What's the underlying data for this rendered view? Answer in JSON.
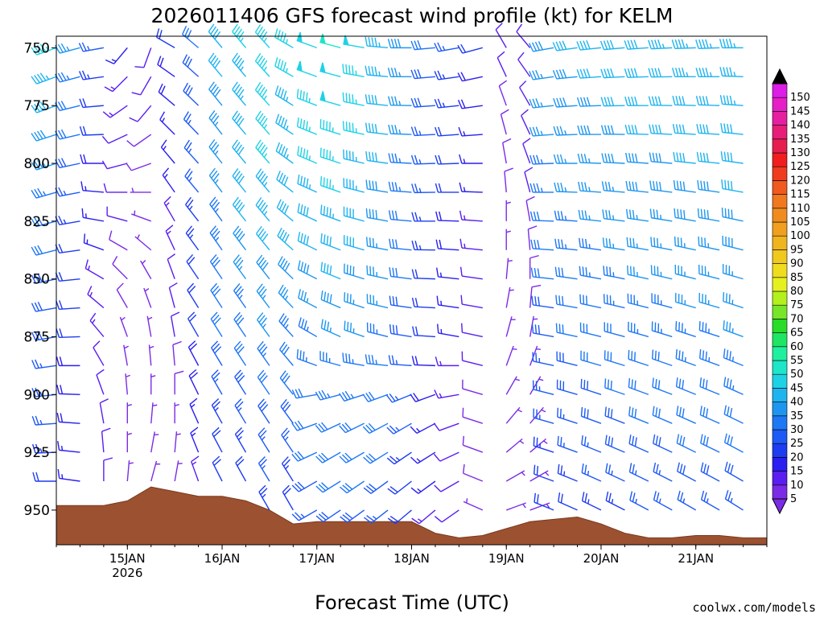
{
  "chart_data": {
    "type": "wind-barb-profile",
    "title": "2026011406 GFS forecast wind profile (kt) for KELM",
    "xlabel": "Forecast Time (UTC)",
    "credit": "coolwx.com/models",
    "y_ticks": [
      "750",
      "775",
      "800",
      "825",
      "850",
      "875",
      "900",
      "925",
      "950"
    ],
    "y_tick_values": [
      750,
      775,
      800,
      825,
      850,
      875,
      900,
      925,
      950
    ],
    "ylim_hpa": [
      745,
      965
    ],
    "x_ticks": [
      {
        "label": "15JAN",
        "sub": "2026",
        "hour": 18
      },
      {
        "label": "16JAN",
        "sub": "",
        "hour": 42
      },
      {
        "label": "17JAN",
        "sub": "",
        "hour": 66
      },
      {
        "label": "18JAN",
        "sub": "",
        "hour": 90
      },
      {
        "label": "19JAN",
        "sub": "",
        "hour": 114
      },
      {
        "label": "20JAN",
        "sub": "",
        "hour": 138
      },
      {
        "label": "21JAN",
        "sub": "",
        "hour": 162
      }
    ],
    "xlim_hours": [
      0,
      180
    ],
    "barb_times_hours": [
      0,
      6,
      12,
      18,
      24,
      30,
      36,
      42,
      48,
      54,
      60,
      66,
      72,
      78,
      84,
      90,
      96,
      102,
      108,
      114,
      120,
      126,
      132,
      138,
      144,
      150,
      156,
      162,
      168,
      174
    ],
    "barb_levels_hpa": [
      750,
      762.5,
      775,
      787.5,
      800,
      812.5,
      825,
      837.5,
      850,
      862.5,
      875,
      887.5,
      900,
      912.5,
      925,
      937.5,
      950
    ],
    "wind_speed_kt": [
      [
        45,
        43,
        40,
        38,
        36,
        34,
        32,
        30,
        29,
        28,
        28,
        27,
        26,
        25,
        24,
        22,
        20
      ],
      [
        35,
        34,
        32,
        30,
        28,
        26,
        24,
        22,
        21,
        20,
        20,
        19,
        18,
        18,
        17,
        16,
        15
      ],
      [
        25,
        24,
        22,
        20,
        18,
        17,
        16,
        15,
        14,
        13,
        13,
        12,
        12,
        11,
        10,
        10,
        10
      ],
      [
        15,
        14,
        13,
        12,
        11,
        10,
        10,
        9,
        8,
        8,
        7,
        7,
        6,
        6,
        5,
        5,
        5
      ],
      [
        12,
        11,
        10,
        9,
        8,
        7,
        6,
        6,
        5,
        5,
        5,
        5,
        5,
        5,
        5,
        5,
        5
      ],
      [
        20,
        19,
        18,
        17,
        16,
        15,
        14,
        13,
        12,
        11,
        10,
        9,
        8,
        7,
        6,
        5,
        5
      ],
      [
        30,
        29,
        28,
        27,
        26,
        25,
        24,
        23,
        22,
        21,
        20,
        19,
        18,
        17,
        15,
        13,
        12
      ],
      [
        40,
        40,
        38,
        37,
        36,
        35,
        34,
        33,
        32,
        31,
        30,
        28,
        26,
        24,
        22,
        20,
        18
      ],
      [
        45,
        44,
        43,
        42,
        42,
        41,
        40,
        38,
        36,
        34,
        32,
        30,
        28,
        26,
        24,
        22,
        20
      ],
      [
        47,
        46,
        46,
        45,
        45,
        44,
        43,
        41,
        39,
        37,
        35,
        33,
        31,
        29,
        27,
        25,
        23
      ],
      [
        45,
        45,
        44,
        43,
        43,
        42,
        41,
        40,
        38,
        36,
        34,
        32,
        30,
        28,
        26,
        24,
        22
      ],
      [
        48,
        48,
        47,
        46,
        45,
        44,
        42,
        40,
        38,
        36,
        34,
        33,
        32,
        31,
        30,
        28,
        26
      ],
      [
        50,
        49,
        48,
        47,
        46,
        45,
        44,
        42,
        40,
        38,
        36,
        34,
        33,
        32,
        31,
        30,
        28
      ],
      [
        48,
        47,
        46,
        45,
        44,
        43,
        42,
        40,
        38,
        36,
        35,
        34,
        33,
        32,
        31,
        30,
        28
      ],
      [
        44,
        43,
        42,
        41,
        40,
        39,
        38,
        37,
        36,
        35,
        34,
        33,
        32,
        31,
        30,
        28,
        26
      ],
      [
        38,
        37,
        36,
        35,
        34,
        33,
        32,
        31,
        30,
        29,
        28,
        27,
        26,
        25,
        24,
        22,
        20
      ],
      [
        30,
        29,
        28,
        27,
        26,
        25,
        24,
        23,
        22,
        21,
        20,
        19,
        18,
        17,
        16,
        15,
        14
      ],
      [
        25,
        24,
        23,
        22,
        21,
        20,
        19,
        18,
        17,
        16,
        15,
        14,
        13,
        12,
        12,
        11,
        10
      ],
      [
        20,
        19,
        18,
        17,
        16,
        15,
        14,
        13,
        12,
        11,
        10,
        10,
        9,
        9,
        8,
        8,
        7
      ],
      [
        10,
        10,
        9,
        9,
        8,
        8,
        7,
        7,
        6,
        6,
        6,
        5,
        5,
        5,
        5,
        5,
        5
      ],
      [
        12,
        12,
        11,
        11,
        10,
        10,
        9,
        9,
        8,
        8,
        7,
        7,
        6,
        6,
        5,
        5,
        5
      ],
      [
        38,
        37,
        36,
        35,
        34,
        33,
        32,
        31,
        30,
        29,
        28,
        27,
        26,
        25,
        24,
        22,
        20
      ],
      [
        40,
        39,
        38,
        37,
        36,
        35,
        34,
        33,
        32,
        31,
        30,
        29,
        28,
        27,
        26,
        24,
        22
      ],
      [
        40,
        40,
        39,
        38,
        37,
        36,
        35,
        34,
        33,
        32,
        31,
        30,
        29,
        28,
        27,
        25,
        23
      ],
      [
        42,
        41,
        40,
        39,
        38,
        37,
        36,
        35,
        34,
        33,
        32,
        31,
        30,
        29,
        28,
        26,
        24
      ],
      [
        42,
        42,
        41,
        40,
        39,
        38,
        37,
        36,
        35,
        34,
        33,
        32,
        31,
        30,
        29,
        27,
        25
      ],
      [
        43,
        42,
        41,
        40,
        39,
        38,
        37,
        36,
        35,
        34,
        33,
        32,
        31,
        30,
        29,
        27,
        25
      ],
      [
        43,
        43,
        42,
        41,
        40,
        39,
        38,
        37,
        36,
        35,
        34,
        33,
        32,
        31,
        30,
        28,
        26
      ],
      [
        44,
        43,
        42,
        41,
        40,
        39,
        38,
        37,
        36,
        35,
        34,
        33,
        32,
        31,
        30,
        28,
        26
      ],
      [
        44,
        44,
        43,
        42,
        41,
        40,
        39,
        38,
        37,
        36,
        35,
        34,
        33,
        32,
        31,
        29,
        27
      ]
    ],
    "wind_dir_deg": [
      [
        250,
        250,
        250,
        252,
        252,
        254,
        255,
        256,
        258,
        260,
        260,
        262,
        264,
        266,
        268,
        270,
        270
      ],
      [
        255,
        255,
        256,
        257,
        258,
        259,
        260,
        262,
        264,
        266,
        268,
        270,
        272,
        274,
        276,
        278,
        280
      ],
      [
        260,
        262,
        265,
        268,
        270,
        275,
        280,
        290,
        300,
        310,
        320,
        330,
        340,
        350,
        355,
        360,
        360
      ],
      [
        220,
        225,
        235,
        245,
        255,
        270,
        285,
        300,
        315,
        330,
        340,
        350,
        355,
        360,
        360,
        5,
        10
      ],
      [
        200,
        210,
        220,
        235,
        250,
        270,
        290,
        310,
        330,
        340,
        350,
        355,
        360,
        5,
        10,
        15,
        20
      ],
      [
        300,
        305,
        310,
        315,
        320,
        325,
        330,
        335,
        340,
        345,
        350,
        355,
        360,
        360,
        5,
        10,
        20
      ],
      [
        310,
        312,
        314,
        316,
        318,
        320,
        322,
        324,
        326,
        328,
        330,
        332,
        334,
        336,
        338,
        340,
        340
      ],
      [
        320,
        320,
        321,
        322,
        322,
        323,
        324,
        325,
        326,
        327,
        328,
        329,
        330,
        331,
        332,
        333,
        334
      ],
      [
        320,
        320,
        320,
        320,
        320,
        321,
        322,
        323,
        324,
        325,
        326,
        327,
        328,
        329,
        330,
        331,
        332
      ],
      [
        318,
        318,
        318,
        319,
        319,
        320,
        320,
        321,
        322,
        323,
        324,
        325,
        326,
        327,
        328,
        329,
        330
      ],
      [
        300,
        300,
        302,
        304,
        306,
        308,
        310,
        312,
        314,
        316,
        318,
        320,
        322,
        324,
        326,
        328,
        330
      ],
      [
        290,
        290,
        291,
        292,
        293,
        294,
        295,
        296,
        297,
        298,
        300,
        290,
        260,
        250,
        245,
        240,
        240
      ],
      [
        285,
        285,
        286,
        287,
        288,
        289,
        290,
        291,
        292,
        293,
        294,
        285,
        255,
        245,
        240,
        238,
        236
      ],
      [
        280,
        280,
        281,
        282,
        283,
        284,
        285,
        286,
        287,
        288,
        289,
        280,
        252,
        244,
        240,
        236,
        234
      ],
      [
        275,
        275,
        276,
        277,
        278,
        279,
        280,
        281,
        282,
        283,
        284,
        276,
        250,
        242,
        238,
        234,
        232
      ],
      [
        270,
        270,
        271,
        272,
        273,
        274,
        275,
        276,
        277,
        278,
        279,
        274,
        248,
        240,
        236,
        232,
        230
      ],
      [
        265,
        265,
        266,
        267,
        268,
        269,
        270,
        271,
        272,
        273,
        274,
        272,
        250,
        242,
        238,
        234,
        230
      ],
      [
        260,
        262,
        264,
        266,
        268,
        270,
        272,
        274,
        276,
        278,
        280,
        270,
        260,
        250,
        245,
        240,
        235
      ],
      [
        255,
        258,
        262,
        266,
        270,
        272,
        274,
        276,
        278,
        280,
        282,
        284,
        286,
        288,
        290,
        292,
        294
      ],
      [
        330,
        335,
        340,
        345,
        350,
        355,
        360,
        360,
        5,
        10,
        15,
        20,
        30,
        40,
        50,
        60,
        70
      ],
      [
        320,
        325,
        330,
        335,
        340,
        345,
        350,
        355,
        360,
        5,
        10,
        20,
        30,
        40,
        50,
        60,
        70
      ],
      [
        260,
        262,
        264,
        266,
        268,
        270,
        272,
        274,
        276,
        278,
        280,
        282,
        284,
        286,
        288,
        290,
        292
      ],
      [
        262,
        264,
        266,
        268,
        270,
        272,
        274,
        276,
        278,
        280,
        282,
        284,
        286,
        288,
        290,
        292,
        294
      ],
      [
        264,
        266,
        268,
        270,
        272,
        274,
        276,
        278,
        280,
        282,
        284,
        286,
        288,
        290,
        292,
        294,
        296
      ],
      [
        265,
        267,
        269,
        271,
        273,
        275,
        277,
        279,
        281,
        283,
        285,
        287,
        289,
        291,
        293,
        295,
        297
      ],
      [
        266,
        268,
        270,
        272,
        274,
        276,
        278,
        280,
        282,
        284,
        286,
        288,
        290,
        292,
        294,
        296,
        298
      ],
      [
        267,
        269,
        271,
        273,
        275,
        277,
        279,
        281,
        283,
        285,
        287,
        289,
        291,
        293,
        295,
        297,
        299
      ],
      [
        268,
        270,
        272,
        274,
        276,
        278,
        280,
        282,
        284,
        286,
        288,
        290,
        292,
        294,
        296,
        298,
        300
      ],
      [
        268,
        270,
        272,
        274,
        276,
        278,
        280,
        282,
        284,
        286,
        288,
        290,
        292,
        294,
        296,
        298,
        300
      ],
      [
        270,
        272,
        274,
        276,
        278,
        280,
        282,
        284,
        286,
        288,
        290,
        292,
        294,
        296,
        298,
        300,
        302
      ]
    ],
    "terrain_hours": [
      0,
      6,
      12,
      18,
      24,
      30,
      36,
      42,
      48,
      54,
      60,
      66,
      72,
      78,
      84,
      90,
      96,
      102,
      108,
      114,
      120,
      126,
      132,
      138,
      144,
      150,
      156,
      162,
      168,
      174,
      180
    ],
    "terrain_pressure_hpa": [
      948,
      948,
      948,
      946,
      940,
      942,
      944,
      944,
      946,
      950,
      956,
      955,
      955,
      955,
      955,
      955,
      960,
      962,
      961,
      958,
      955,
      954,
      953,
      956,
      960,
      962,
      962,
      961,
      961,
      962,
      962
    ],
    "colorbar": {
      "levels": [
        "5",
        "10",
        "15",
        "20",
        "25",
        "30",
        "35",
        "40",
        "45",
        "50",
        "55",
        "60",
        "65",
        "70",
        "75",
        "80",
        "85",
        "90",
        "95",
        "100",
        "105",
        "110",
        "115",
        "120",
        "125",
        "130",
        "135",
        "140",
        "145",
        "150"
      ],
      "colors": [
        "#7b2be6",
        "#5a1ef0",
        "#2a1ef0",
        "#1e3cf0",
        "#1e5af5",
        "#1e78f5",
        "#1e96f0",
        "#1eb4f0",
        "#1ed2e6",
        "#1ee6c8",
        "#1ef0a0",
        "#1ee664",
        "#28dc28",
        "#78e628",
        "#b4f01e",
        "#e6f01e",
        "#f0dc1e",
        "#f0c81e",
        "#f0b41e",
        "#f0a01e",
        "#f08c1e",
        "#f0781e",
        "#f05a1e",
        "#f03c1e",
        "#f01e1e",
        "#e61e50",
        "#e61e78",
        "#e61ea0",
        "#e61ec8",
        "#dc1ee6"
      ]
    },
    "colors": {
      "terrain": "#9c5130",
      "terrain_edge": "#7a3b20"
    }
  }
}
